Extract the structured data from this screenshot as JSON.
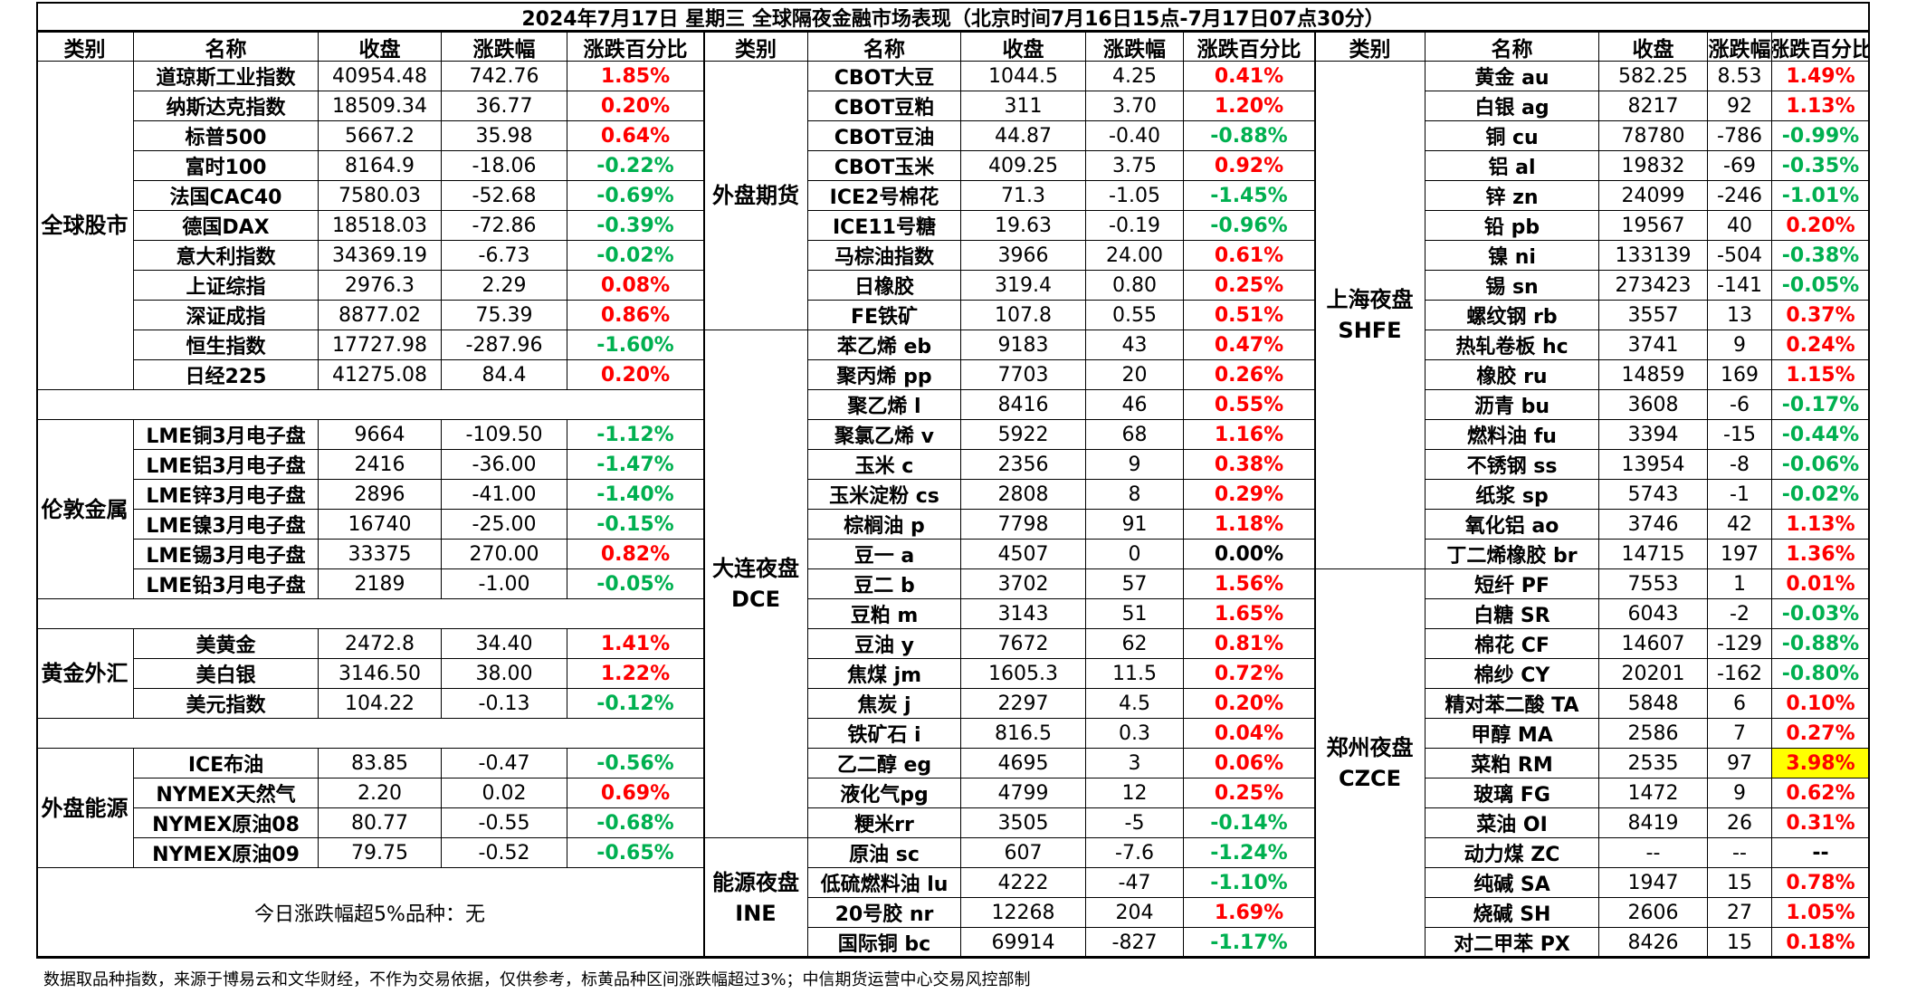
{
  "title": "2024年7月17日 星期三 全球隔夜金融市场表现（北京时间7月16日15点-7月17日07点30分）",
  "headers": [
    "类别",
    "名称",
    "收盘",
    "涨跌幅",
    "涨跌百分比"
  ],
  "left_groups": [
    {
      "name": "全球股市",
      "rows": [
        [
          "道琼斯工业指数",
          "40954.48",
          "742.76",
          "1.85%"
        ],
        [
          "纳斯达克指数",
          "18509.34",
          "36.77",
          "0.20%"
        ],
        [
          "标普500",
          "5667.2",
          "35.98",
          "0.64%"
        ],
        [
          "富时100",
          "8164.9",
          "-18.06",
          "-0.22%"
        ],
        [
          "法国CAC40",
          "7580.03",
          "-52.68",
          "-0.69%"
        ],
        [
          "德国DAX",
          "18518.03",
          "-72.86",
          "-0.39%"
        ],
        [
          "意大利指数",
          "34369.19",
          "-6.73",
          "-0.02%"
        ],
        [
          "上证综指",
          "2976.3",
          "2.29",
          "0.08%"
        ],
        [
          "深证成指",
          "8877.02",
          "75.39",
          "0.86%"
        ],
        [
          "恒生指数",
          "17727.98",
          "-287.96",
          "-1.60%"
        ],
        [
          "日经225",
          "41275.08",
          "84.4",
          "0.20%"
        ]
      ]
    },
    {
      "name": "伦敦金属",
      "rows": [
        [
          "LME铜3月电子盘",
          "9664",
          "-109.50",
          "-1.12%"
        ],
        [
          "LME铝3月电子盘",
          "2416",
          "-36.00",
          "-1.47%"
        ],
        [
          "LME锌3月电子盘",
          "2896",
          "-41.00",
          "-1.40%"
        ],
        [
          "LME镍3月电子盘",
          "16740",
          "-25.00",
          "-0.15%"
        ],
        [
          "LME锡3月电子盘",
          "33375",
          "270.00",
          "0.82%"
        ],
        [
          "LME铅3月电子盘",
          "2189",
          "-1.00",
          "-0.05%"
        ]
      ]
    },
    {
      "name": "黄金外汇",
      "rows": [
        [
          "美黄金",
          "2472.8",
          "34.40",
          "1.41%"
        ],
        [
          "美白银",
          "3146.50",
          "38.00",
          "1.22%"
        ],
        [
          "美元指数",
          "104.22",
          "-0.13",
          "-0.12%"
        ]
      ]
    },
    {
      "name": "外盘能源",
      "rows": [
        [
          "ICE布油",
          "83.85",
          "-0.47",
          "-0.56%"
        ],
        [
          "NYMEX天然气",
          "2.20",
          "0.02",
          "0.69%"
        ],
        [
          "NYMEX原油08",
          "80.77",
          "-0.55",
          "-0.68%"
        ],
        [
          "NYMEX原油09",
          "79.75",
          "-0.52",
          "-0.65%"
        ]
      ]
    }
  ],
  "left_note": "今日涨跌幅超5%品种：无",
  "middle_groups": [
    {
      "name": "外盘期货",
      "rows": [
        [
          "CBOT大豆",
          "1044.5",
          "4.25",
          "0.41%"
        ],
        [
          "CBOT豆粕",
          "311",
          "3.70",
          "1.20%"
        ],
        [
          "CBOT豆油",
          "44.87",
          "-0.40",
          "-0.88%"
        ],
        [
          "CBOT玉米",
          "409.25",
          "3.75",
          "0.92%"
        ],
        [
          "ICE2号棉花",
          "71.3",
          "-1.05",
          "-1.45%"
        ],
        [
          "ICE11号糖",
          "19.63",
          "-0.19",
          "-0.96%"
        ],
        [
          "马棕油指数",
          "3966",
          "24.00",
          "0.61%"
        ],
        [
          "日橡胶",
          "319.4",
          "0.80",
          "0.25%"
        ],
        [
          "FE铁矿",
          "107.8",
          "0.55",
          "0.51%"
        ]
      ]
    },
    {
      "name": "大连夜盘\nDCE",
      "rows": [
        [
          "苯乙烯 eb",
          "9183",
          "43",
          "0.47%"
        ],
        [
          "聚丙烯 pp",
          "7703",
          "20",
          "0.26%"
        ],
        [
          "聚乙烯 l",
          "8416",
          "46",
          "0.55%"
        ],
        [
          "聚氯乙烯 v",
          "5922",
          "68",
          "1.16%"
        ],
        [
          "玉米 c",
          "2356",
          "9",
          "0.38%"
        ],
        [
          "玉米淀粉 cs",
          "2808",
          "8",
          "0.29%"
        ],
        [
          "棕榈油 p",
          "7798",
          "91",
          "1.18%"
        ],
        [
          "豆一 a",
          "4507",
          "0",
          "0.00%"
        ],
        [
          "豆二 b",
          "3702",
          "57",
          "1.56%"
        ],
        [
          "豆粕 m",
          "3143",
          "51",
          "1.65%"
        ],
        [
          "豆油 y",
          "7672",
          "62",
          "0.81%"
        ],
        [
          "焦煤 jm",
          "1605.3",
          "11.5",
          "0.72%"
        ],
        [
          "焦炭 j",
          "2297",
          "4.5",
          "0.20%"
        ],
        [
          "铁矿石 i",
          "816.5",
          "0.3",
          "0.04%"
        ],
        [
          "乙二醇 eg",
          "4695",
          "3",
          "0.06%"
        ],
        [
          "液化气pg",
          "4799",
          "12",
          "0.25%"
        ],
        [
          "粳米rr",
          "3505",
          "-5",
          "-0.14%"
        ]
      ]
    },
    {
      "name": "能源夜盘\nINE",
      "rows": [
        [
          "原油 sc",
          "607",
          "-7.6",
          "-1.24%"
        ],
        [
          "低硫燃料油 lu",
          "4222",
          "-47",
          "-1.10%"
        ],
        [
          "20号胶 nr",
          "12268",
          "204",
          "1.69%"
        ],
        [
          "国际铜 bc",
          "69914",
          "-827",
          "-1.17%"
        ]
      ]
    }
  ],
  "right_groups": [
    {
      "name": "上海夜盘\nSHFE",
      "rows": [
        [
          "黄金 au",
          "582.25",
          "8.53",
          "1.49%"
        ],
        [
          "白银 ag",
          "8217",
          "92",
          "1.13%"
        ],
        [
          "铜 cu",
          "78780",
          "-786",
          "-0.99%"
        ],
        [
          "铝 al",
          "19832",
          "-69",
          "-0.35%"
        ],
        [
          "锌 zn",
          "24099",
          "-246",
          "-1.01%"
        ],
        [
          "铅 pb",
          "19567",
          "40",
          "0.20%"
        ],
        [
          "镍 ni",
          "133139",
          "-504",
          "-0.38%"
        ],
        [
          "锡 sn",
          "273423",
          "-141",
          "-0.05%"
        ],
        [
          "螺纹钢 rb",
          "3557",
          "13",
          "0.37%"
        ],
        [
          "热轧卷板 hc",
          "3741",
          "9",
          "0.24%"
        ],
        [
          "橡胶 ru",
          "14859",
          "169",
          "1.15%"
        ],
        [
          "沥青 bu",
          "3608",
          "-6",
          "-0.17%"
        ],
        [
          "燃料油 fu",
          "3394",
          "-15",
          "-0.44%"
        ],
        [
          "不锈钢 ss",
          "13954",
          "-8",
          "-0.06%"
        ],
        [
          "纸浆 sp",
          "5743",
          "-1",
          "-0.02%"
        ],
        [
          "氧化铝 ao",
          "3746",
          "42",
          "1.13%"
        ],
        [
          "丁二烯橡胶 br",
          "14715",
          "197",
          "1.36%"
        ]
      ]
    },
    {
      "name": "郑州夜盘\nCZCE",
      "rows": [
        [
          "短纤 PF",
          "7553",
          "1",
          "0.01%"
        ],
        [
          "白糖 SR",
          "6043",
          "-2",
          "-0.03%"
        ],
        [
          "棉花 CF",
          "14607",
          "-129",
          "-0.88%"
        ],
        [
          "棉纱 CY",
          "20201",
          "-162",
          "-0.80%"
        ],
        [
          "精对苯二酸 TA",
          "5848",
          "6",
          "0.10%"
        ],
        [
          "甲醇 MA",
          "2586",
          "7",
          "0.27%"
        ],
        [
          "菜粕 RM",
          "2535",
          "97",
          "3.98%"
        ],
        [
          "玻璃 FG",
          "1472",
          "9",
          "0.62%"
        ],
        [
          "菜油 OI",
          "8419",
          "26",
          "0.31%"
        ],
        [
          "动力煤 ZC",
          "--",
          "--",
          "--"
        ],
        [
          "纯碱 SA",
          "1947",
          "15",
          "0.78%"
        ],
        [
          "烧碱 SH",
          "2606",
          "27",
          "1.05%"
        ],
        [
          "对二甲苯 PX",
          "8426",
          "15",
          "0.18%"
        ]
      ]
    }
  ],
  "highlight": "3.98%",
  "footer": "数据取品种指数，来源于博易云和文华财经，不作为交易依据，仅供参考，标黄品种区间涨跌幅超过3%；中信期货运营中心交易风控部制",
  "colors": {
    "up": "#ff0000",
    "down": "#00b050",
    "highlight": "#ffff00"
  }
}
